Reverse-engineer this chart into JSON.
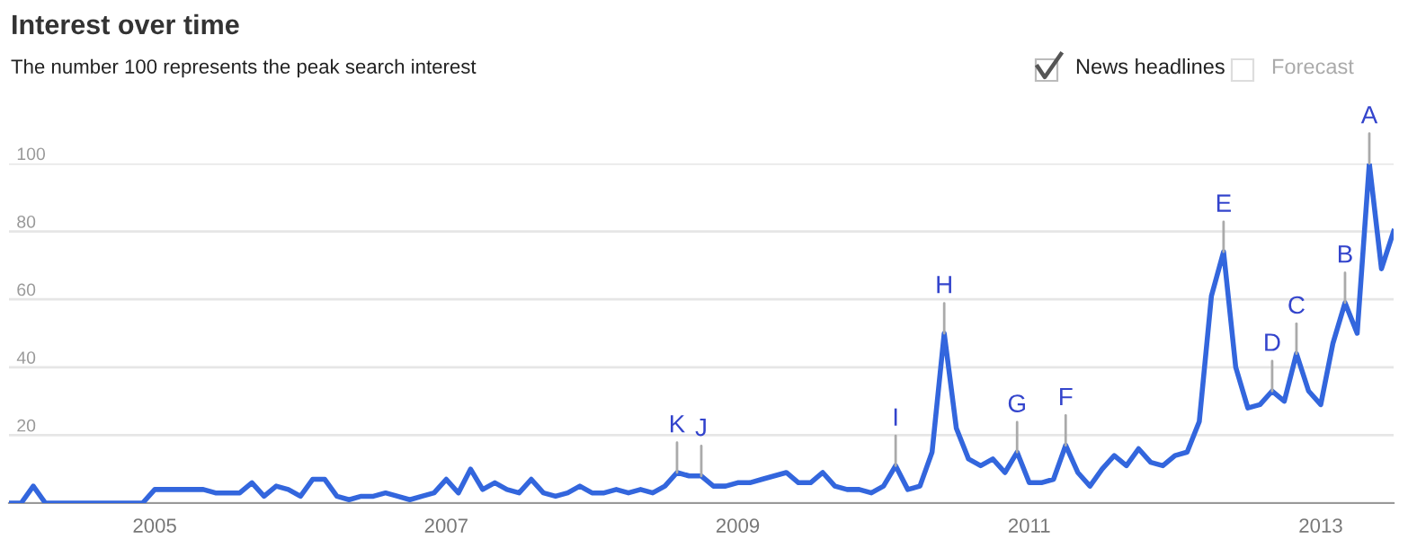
{
  "chart_data": {
    "type": "line",
    "title": "Interest over time",
    "subtitle": "The number 100 represents the peak search interest",
    "x": [
      "2004-01",
      "2004-02",
      "2004-03",
      "2004-04",
      "2004-05",
      "2004-06",
      "2004-07",
      "2004-08",
      "2004-09",
      "2004-10",
      "2004-11",
      "2004-12",
      "2005-01",
      "2005-02",
      "2005-03",
      "2005-04",
      "2005-05",
      "2005-06",
      "2005-07",
      "2005-08",
      "2005-09",
      "2005-10",
      "2005-11",
      "2005-12",
      "2006-01",
      "2006-02",
      "2006-03",
      "2006-04",
      "2006-05",
      "2006-06",
      "2006-07",
      "2006-08",
      "2006-09",
      "2006-10",
      "2006-11",
      "2006-12",
      "2007-01",
      "2007-02",
      "2007-03",
      "2007-04",
      "2007-05",
      "2007-06",
      "2007-07",
      "2007-08",
      "2007-09",
      "2007-10",
      "2007-11",
      "2007-12",
      "2008-01",
      "2008-02",
      "2008-03",
      "2008-04",
      "2008-05",
      "2008-06",
      "2008-07",
      "2008-08",
      "2008-09",
      "2008-10",
      "2008-11",
      "2008-12",
      "2009-01",
      "2009-02",
      "2009-03",
      "2009-04",
      "2009-05",
      "2009-06",
      "2009-07",
      "2009-08",
      "2009-09",
      "2009-10",
      "2009-11",
      "2009-12",
      "2010-01",
      "2010-02",
      "2010-03",
      "2010-04",
      "2010-05",
      "2010-06",
      "2010-07",
      "2010-08",
      "2010-09",
      "2010-10",
      "2010-11",
      "2010-12",
      "2011-01",
      "2011-02",
      "2011-03",
      "2011-04",
      "2011-05",
      "2011-06",
      "2011-07",
      "2011-08",
      "2011-09",
      "2011-10",
      "2011-11",
      "2011-12",
      "2012-01",
      "2012-02",
      "2012-03",
      "2012-04",
      "2012-05",
      "2012-06",
      "2012-07",
      "2012-08",
      "2012-09",
      "2012-10",
      "2012-11",
      "2012-12",
      "2013-01",
      "2013-02",
      "2013-03",
      "2013-04",
      "2013-05",
      "2013-06",
      "2013-07"
    ],
    "series": [
      {
        "color": "#3366dd",
        "values": [
          0,
          0,
          5,
          0,
          0,
          0,
          0,
          0,
          0,
          0,
          0,
          0,
          4,
          4,
          4,
          4,
          4,
          3,
          3,
          3,
          6,
          2,
          5,
          4,
          2,
          7,
          7,
          2,
          1,
          2,
          2,
          3,
          2,
          1,
          2,
          3,
          7,
          3,
          10,
          4,
          6,
          4,
          3,
          7,
          3,
          2,
          3,
          5,
          3,
          3,
          4,
          3,
          4,
          3,
          5,
          9,
          8,
          8,
          5,
          5,
          6,
          6,
          7,
          8,
          9,
          6,
          6,
          9,
          5,
          4,
          4,
          3,
          5,
          11,
          4,
          5,
          15,
          50,
          22,
          13,
          11,
          13,
          9,
          15,
          6,
          6,
          7,
          17,
          9,
          5,
          10,
          14,
          11,
          16,
          12,
          11,
          14,
          15,
          24,
          61,
          74,
          40,
          28,
          29,
          33,
          30,
          44,
          33,
          29,
          47,
          59,
          50,
          100,
          69,
          80
        ]
      }
    ],
    "annotations": [
      {
        "text": "A",
        "x": "2013-05",
        "y": 100
      },
      {
        "text": "B",
        "x": "2013-03",
        "y": 59
      },
      {
        "text": "C",
        "x": "2012-11",
        "y": 44
      },
      {
        "text": "D",
        "x": "2012-09",
        "y": 33
      },
      {
        "text": "E",
        "x": "2012-05",
        "y": 74
      },
      {
        "text": "F",
        "x": "2011-04",
        "y": 17
      },
      {
        "text": "G",
        "x": "2010-12",
        "y": 15
      },
      {
        "text": "H",
        "x": "2010-06",
        "y": 50
      },
      {
        "text": "I",
        "x": "2010-02",
        "y": 11
      },
      {
        "text": "J",
        "x": "2008-10",
        "y": 8
      },
      {
        "text": "K",
        "x": "2008-08",
        "y": 9
      },
      "News headlines",
      "Forecast"
    ],
    "xlim": [
      "2004-01",
      "2013-07"
    ],
    "xticks": [
      {
        "value": "2005-01",
        "label": "2005"
      },
      {
        "value": "2007-01",
        "label": "2007"
      },
      {
        "value": "2009-01",
        "label": "2009"
      },
      {
        "value": "2011-01",
        "label": "2011"
      },
      {
        "value": "2013-01",
        "label": "2013"
      }
    ],
    "ylim": [
      0,
      100
    ],
    "yticks": [
      {
        "value": 0,
        "label": null
      },
      20,
      40,
      60,
      80,
      100
    ],
    "grid": "y",
    "legend": false,
    "marker": "none",
    "line_style": "solid"
  }
}
